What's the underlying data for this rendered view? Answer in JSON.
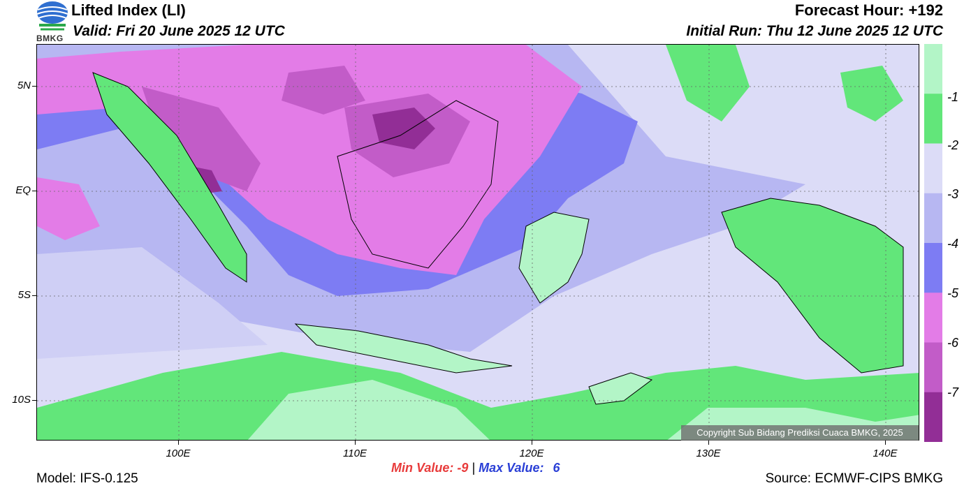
{
  "header": {
    "title": "Lifted Index (LI)",
    "valid": "Valid: Fri 20 June 2025 12 UTC",
    "forecast_hour": "Forecast Hour: +192",
    "initial_run": "Initial Run: Thu 12 June 2025 12 UTC",
    "logo_text": "BMKG"
  },
  "map": {
    "lat_labels": [
      "5N",
      "EQ",
      "5S",
      "10S"
    ],
    "lon_labels": [
      "100E",
      "110E",
      "120E",
      "130E",
      "140E"
    ],
    "copyright": "Copyright Sub Bidang Prediksi Cuaca BMKG, 2025"
  },
  "colorbar": {
    "labels": [
      "-1",
      "-2",
      "-3",
      "-4",
      "-5",
      "-6",
      "-7"
    ],
    "colors": [
      "#b3f5c7",
      "#62e67a",
      "#dcdcf7",
      "#b7b7f2",
      "#7d7cf3",
      "#e37ce7",
      "#c25cc8",
      "#922e96"
    ]
  },
  "footer": {
    "min_label": "Min Value:",
    "min_value": "-9",
    "separator": "|",
    "max_label": "Max Value:",
    "max_value": "6",
    "model": "Model: IFS-0.125",
    "source": "Source: ECMWF-CIPS BMKG"
  }
}
